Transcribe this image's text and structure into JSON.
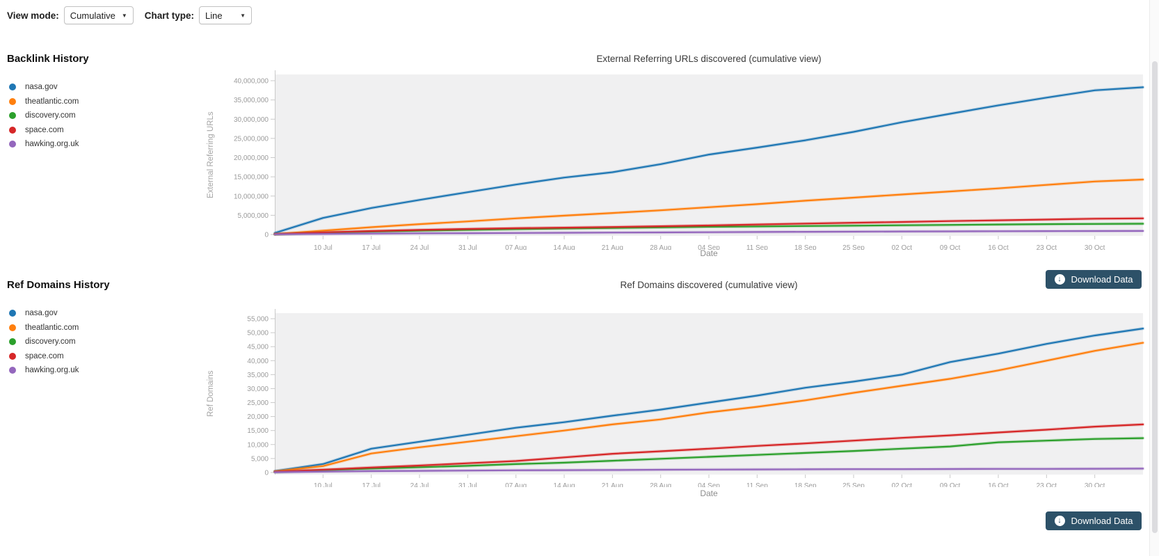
{
  "toolbar": {
    "view_mode_label": "View mode:",
    "view_mode_value": "Cumulative",
    "chart_type_label": "Chart type:",
    "chart_type_value": "Line"
  },
  "icons": {
    "select_caret": "▼",
    "download_arrow": "↓"
  },
  "sections": [
    {
      "heading": "Backlink History",
      "download_label": "Download Data"
    },
    {
      "heading": "Ref Domains History",
      "download_label": "Download Data"
    }
  ],
  "legend": {
    "items": [
      {
        "label": "nasa.gov",
        "color": "#1f77b4"
      },
      {
        "label": "theatlantic.com",
        "color": "#ff7f0e"
      },
      {
        "label": "discovery.com",
        "color": "#2ca02c"
      },
      {
        "label": "space.com",
        "color": "#d62728"
      },
      {
        "label": "hawking.org.uk",
        "color": "#9467bd"
      }
    ]
  },
  "chart_data": [
    {
      "type": "line",
      "title": "External Referring URLs discovered (cumulative view)",
      "xlabel": "Date",
      "ylabel": "External Referring URLs",
      "ylim": [
        0,
        40000000
      ],
      "grid": false,
      "legend_position": "left-panel",
      "x_tick_labels": [
        "10 Jul",
        "17 Jul",
        "24 Jul",
        "31 Jul",
        "07 Aug",
        "14 Aug",
        "21 Aug",
        "28 Aug",
        "04 Sep",
        "11 Sep",
        "18 Sep",
        "25 Sep",
        "02 Oct",
        "09 Oct",
        "16 Oct",
        "23 Oct",
        "30 Oct"
      ],
      "ytick_values": [
        0,
        5000000,
        10000000,
        15000000,
        20000000,
        25000000,
        30000000,
        35000000,
        40000000
      ],
      "ytick_labels": [
        "0",
        "5,000,000",
        "10,000,000",
        "15,000,000",
        "20,000,000",
        "25,000,000",
        "30,000,000",
        "35,000,000",
        "40,000,000"
      ],
      "series": [
        {
          "name": "nasa.gov",
          "color": "#1f77b4",
          "values": [
            400000,
            4300000,
            6900000,
            9000000,
            11000000,
            13000000,
            14800000,
            16200000,
            18300000,
            20800000,
            22600000,
            24500000,
            26700000,
            29200000,
            31400000,
            33600000,
            35600000,
            37500000,
            38300000
          ]
        },
        {
          "name": "theatlantic.com",
          "color": "#ff7f0e",
          "values": [
            100000,
            1000000,
            1900000,
            2700000,
            3400000,
            4200000,
            4900000,
            5600000,
            6300000,
            7100000,
            7900000,
            8800000,
            9600000,
            10400000,
            11200000,
            12000000,
            12900000,
            13800000,
            14300000
          ]
        },
        {
          "name": "discovery.com",
          "color": "#2ca02c",
          "values": [
            50000,
            450000,
            750000,
            1000000,
            1200000,
            1400000,
            1550000,
            1700000,
            1850000,
            2000000,
            2100000,
            2200000,
            2300000,
            2400000,
            2500000,
            2600000,
            2700000,
            2750000,
            2800000
          ]
        },
        {
          "name": "space.com",
          "color": "#d62728",
          "values": [
            100000,
            550000,
            900000,
            1200000,
            1450000,
            1650000,
            1800000,
            1950000,
            2150000,
            2350000,
            2600000,
            2850000,
            3050000,
            3250000,
            3500000,
            3700000,
            3900000,
            4100000,
            4200000
          ]
        },
        {
          "name": "hawking.org.uk",
          "color": "#9467bd",
          "values": [
            50000,
            150000,
            250000,
            300000,
            350000,
            400000,
            450000,
            500000,
            550000,
            600000,
            650000,
            700000,
            750000,
            800000,
            820000,
            850000,
            880000,
            900000,
            920000
          ]
        }
      ]
    },
    {
      "type": "line",
      "title": "Ref Domains discovered (cumulative view)",
      "xlabel": "Date",
      "ylabel": "Ref Domains",
      "ylim": [
        0,
        55000
      ],
      "grid": false,
      "legend_position": "left-panel",
      "x_tick_labels": [
        "10 Jul",
        "17 Jul",
        "24 Jul",
        "31 Jul",
        "07 Aug",
        "14 Aug",
        "21 Aug",
        "28 Aug",
        "04 Sep",
        "11 Sep",
        "18 Sep",
        "25 Sep",
        "02 Oct",
        "09 Oct",
        "16 Oct",
        "23 Oct",
        "30 Oct"
      ],
      "ytick_values": [
        0,
        5000,
        10000,
        15000,
        20000,
        25000,
        30000,
        35000,
        40000,
        45000,
        50000,
        55000
      ],
      "ytick_labels": [
        "0",
        "5,000",
        "10,000",
        "15,000",
        "20,000",
        "25,000",
        "30,000",
        "35,000",
        "40,000",
        "45,000",
        "50,000",
        "55,000"
      ],
      "series": [
        {
          "name": "nasa.gov",
          "color": "#1f77b4",
          "values": [
            500,
            3000,
            8500,
            11000,
            13500,
            16000,
            18000,
            20300,
            22500,
            25000,
            27500,
            30300,
            32500,
            35000,
            39500,
            42500,
            46000,
            49000,
            51500
          ]
        },
        {
          "name": "theatlantic.com",
          "color": "#ff7f0e",
          "values": [
            400,
            2300,
            6800,
            9000,
            11000,
            13000,
            15000,
            17200,
            19000,
            21500,
            23500,
            25800,
            28500,
            31000,
            33500,
            36500,
            40000,
            43500,
            46400
          ]
        },
        {
          "name": "discovery.com",
          "color": "#2ca02c",
          "values": [
            200,
            800,
            1400,
            1900,
            2400,
            3000,
            3500,
            4200,
            4900,
            5600,
            6300,
            7000,
            7700,
            8500,
            9300,
            10800,
            11400,
            12000,
            12300
          ]
        },
        {
          "name": "space.com",
          "color": "#d62728",
          "values": [
            300,
            1000,
            1800,
            2500,
            3300,
            4100,
            5400,
            6700,
            7600,
            8500,
            9500,
            10400,
            11400,
            12400,
            13300,
            14300,
            15300,
            16400,
            17200
          ]
        },
        {
          "name": "hawking.org.uk",
          "color": "#9467bd",
          "values": [
            100,
            300,
            500,
            600,
            700,
            800,
            850,
            900,
            1000,
            1050,
            1100,
            1150,
            1200,
            1200,
            1250,
            1300,
            1300,
            1350,
            1400
          ]
        }
      ]
    }
  ]
}
